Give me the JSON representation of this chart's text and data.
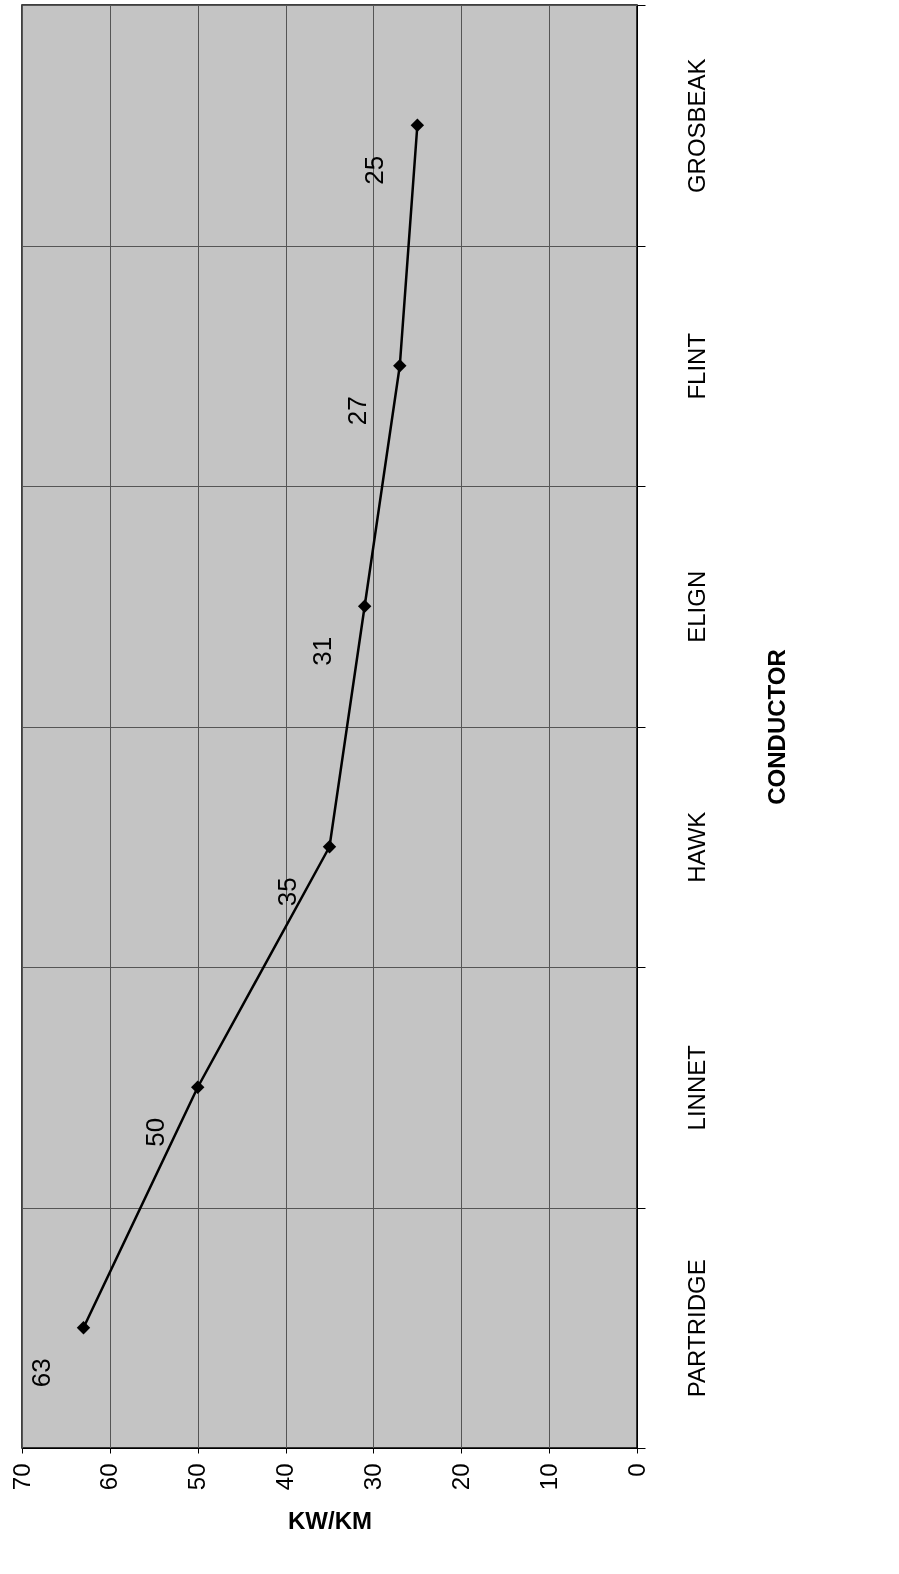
{
  "chart_data": {
    "type": "line",
    "orientation": "horizontal",
    "xlabel": "KW/KM",
    "ylabel": "CONDUCTOR",
    "categories": [
      "GROSBEAK",
      "FLINT",
      "ELIGN",
      "HAWK",
      "LINNET",
      "PARTRIDGE"
    ],
    "series": [
      {
        "color": "#000000",
        "values": [
          25,
          27,
          31,
          35,
          50,
          63
        ]
      }
    ],
    "xlim": [
      70,
      0
    ],
    "xticks": [
      70,
      60,
      50,
      40,
      30,
      20,
      10,
      0
    ],
    "grid": true,
    "marker": "diamond",
    "line_style": "solid",
    "data_labels": true
  }
}
